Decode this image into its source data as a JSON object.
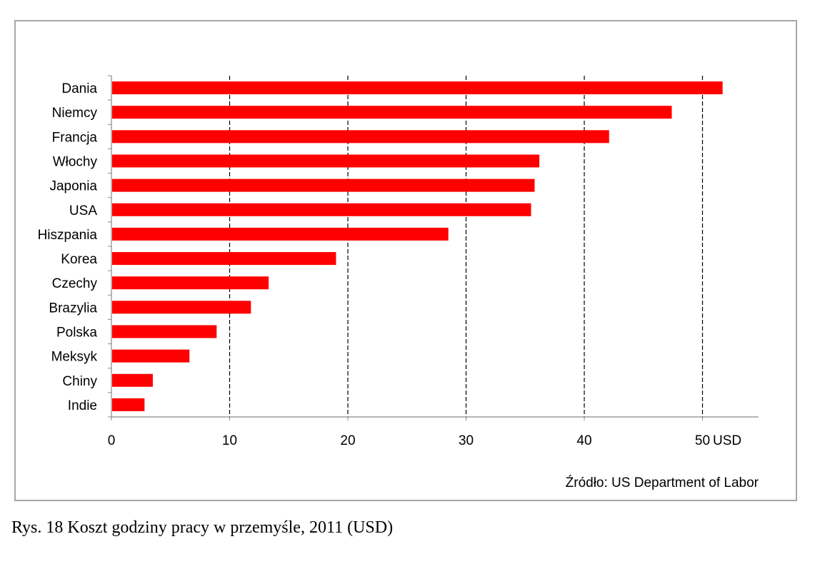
{
  "chart_data": {
    "type": "bar",
    "orientation": "horizontal",
    "categories": [
      "Dania",
      "Niemcy",
      "Francja",
      "Włochy",
      "Japonia",
      "USA",
      "Hiszpania",
      "Korea",
      "Czechy",
      "Brazylia",
      "Polska",
      "Meksyk",
      "Chiny",
      "Indie"
    ],
    "values": [
      51.7,
      47.4,
      42.1,
      36.2,
      35.8,
      35.5,
      28.5,
      19.0,
      13.3,
      11.8,
      8.9,
      6.6,
      3.5,
      2.8
    ],
    "xlim": [
      0,
      55
    ],
    "xticks": [
      0,
      10,
      20,
      30,
      40,
      50
    ],
    "xlabel": "USD",
    "grid": "vertical dashed",
    "bar_color": "#ff0000",
    "source": "Źródło: US Department of Labor"
  },
  "caption": "Rys. 18 Koszt godziny pracy w przemyśle, 2011 (USD)"
}
